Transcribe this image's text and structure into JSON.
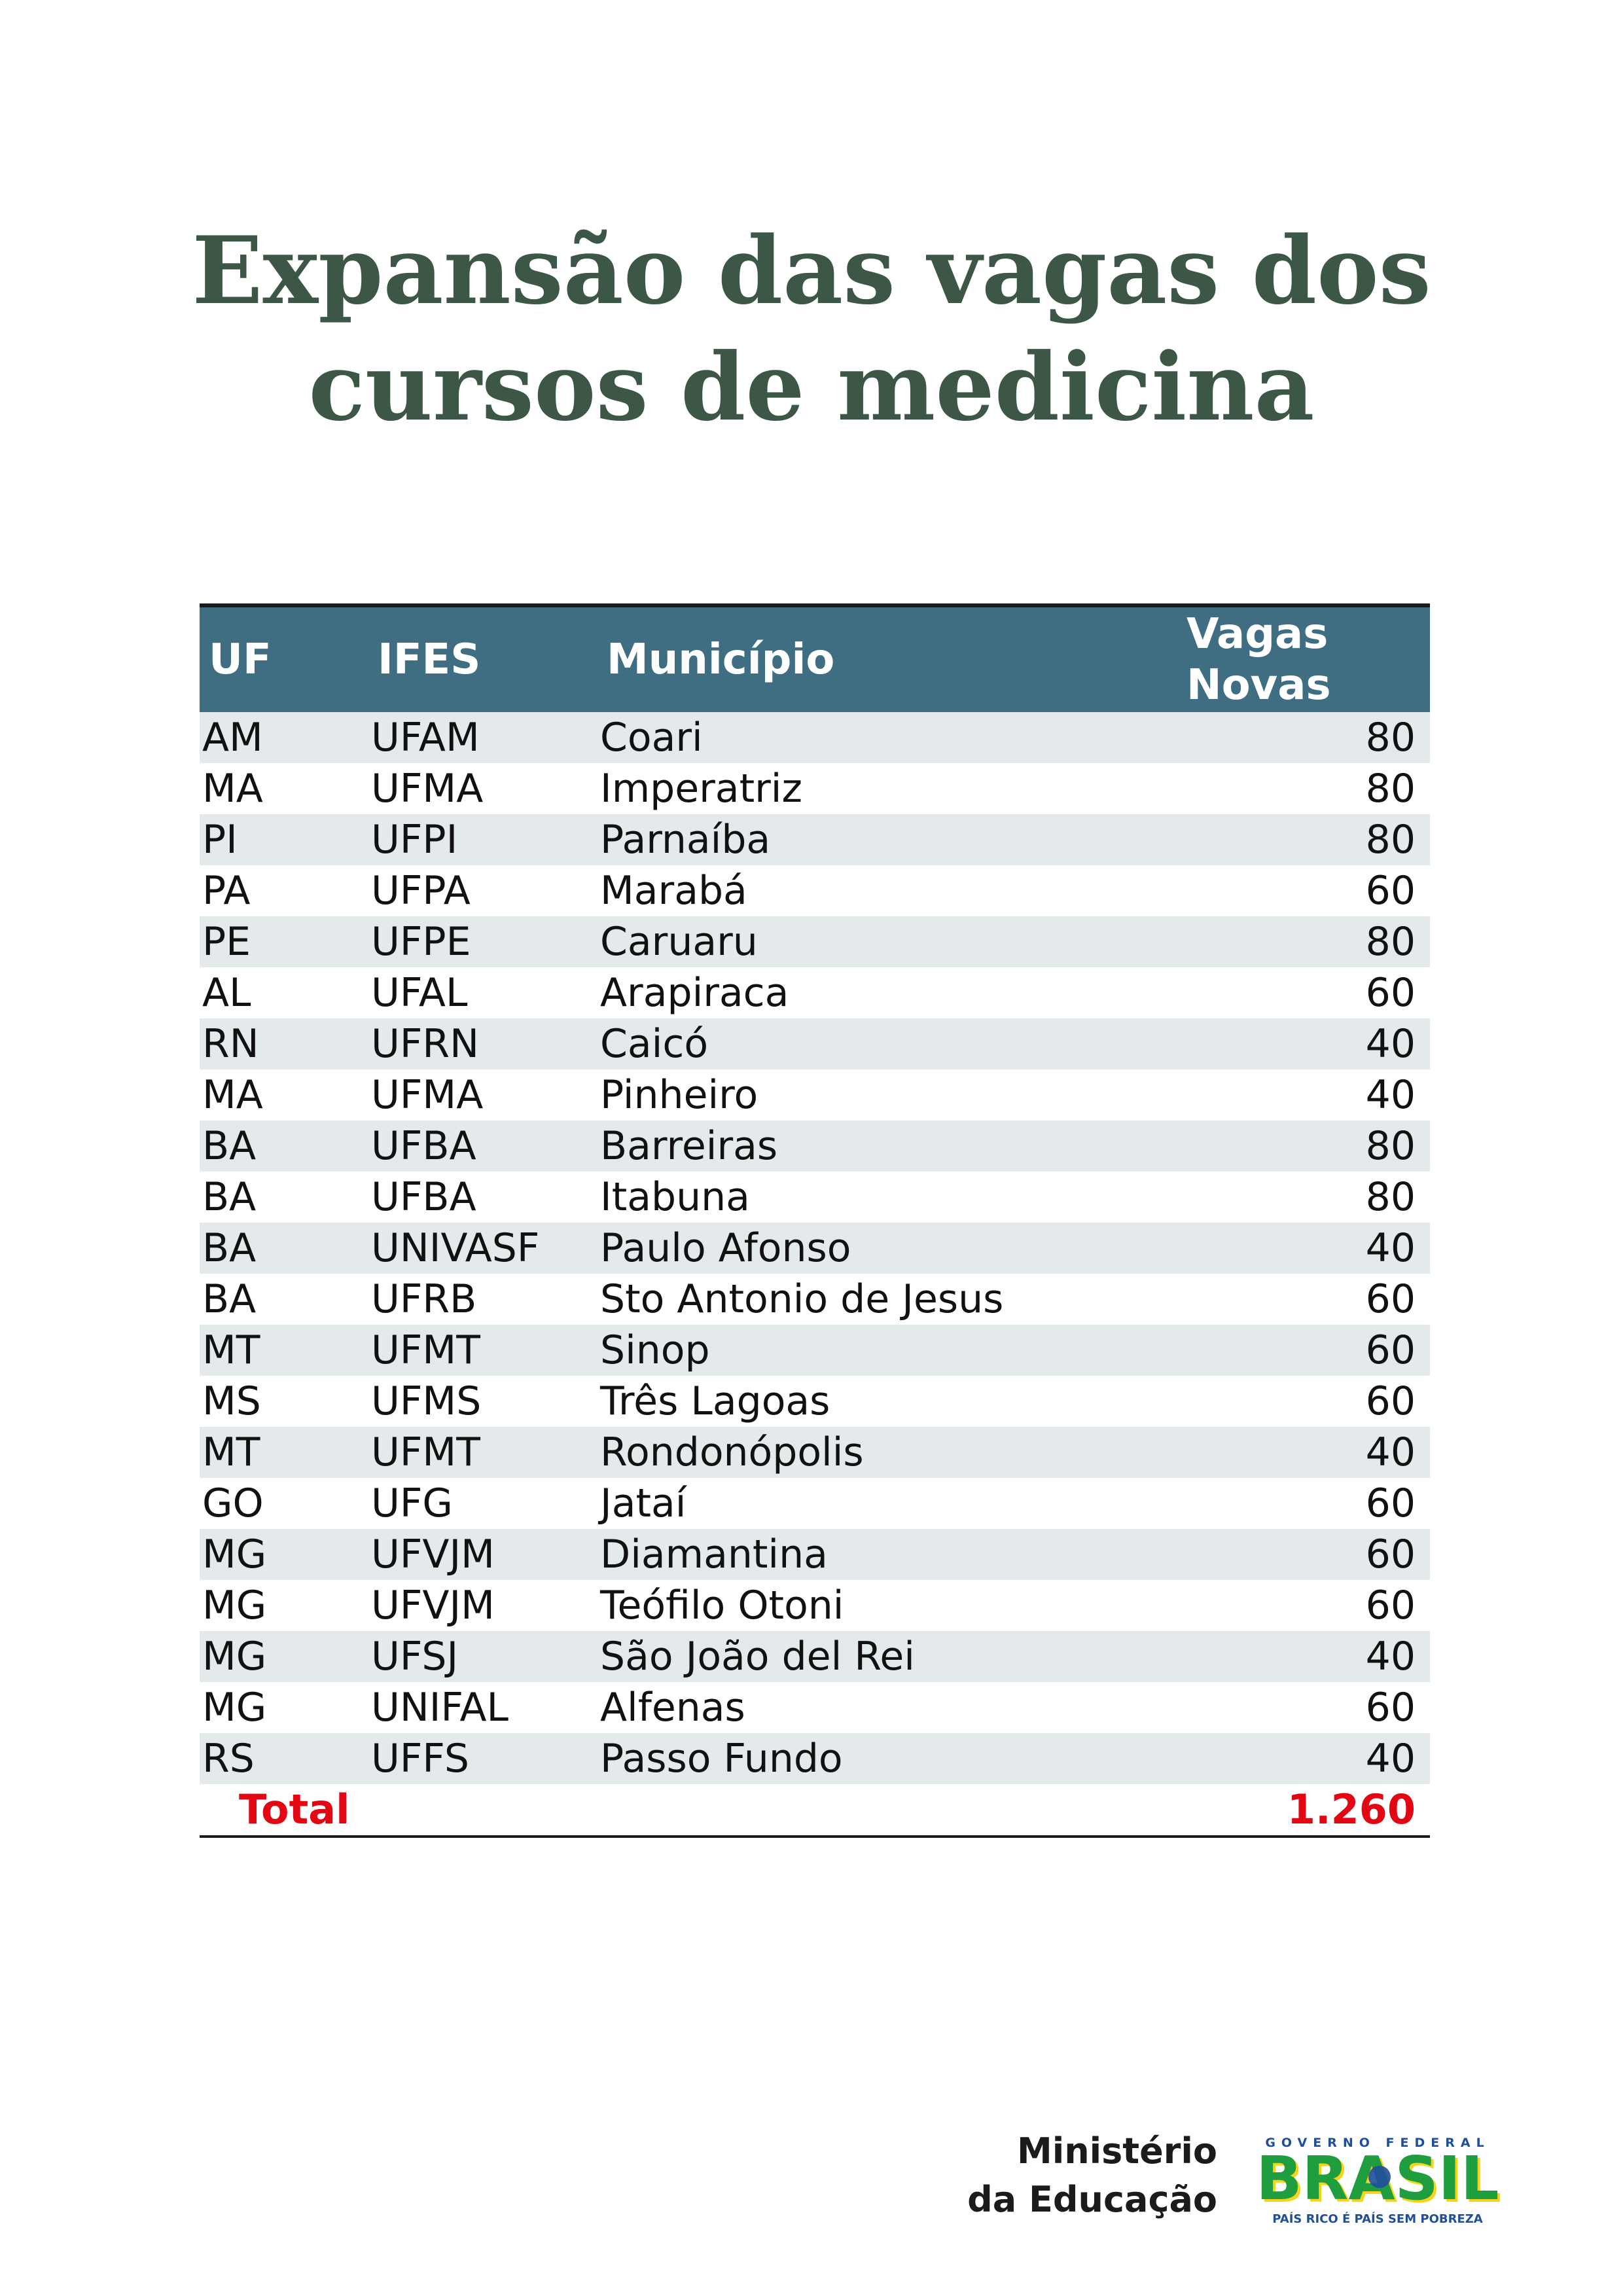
{
  "title": {
    "line1": "Expansão das vagas dos",
    "line2": "cursos de medicina"
  },
  "table": {
    "headers": {
      "uf": "UF",
      "ifes": "IFES",
      "municipio": "Município",
      "vagas_line1": "Vagas",
      "vagas_line2": "Novas"
    },
    "rows": [
      {
        "uf": "AM",
        "ifes": "UFAM",
        "municipio": "Coari",
        "vagas": "80"
      },
      {
        "uf": "MA",
        "ifes": "UFMA",
        "municipio": "Imperatriz",
        "vagas": "80"
      },
      {
        "uf": "PI",
        "ifes": "UFPI",
        "municipio": "Parnaíba",
        "vagas": "80"
      },
      {
        "uf": "PA",
        "ifes": "UFPA",
        "municipio": "Marabá",
        "vagas": "60"
      },
      {
        "uf": "PE",
        "ifes": "UFPE",
        "municipio": "Caruaru",
        "vagas": "80"
      },
      {
        "uf": "AL",
        "ifes": "UFAL",
        "municipio": "Arapiraca",
        "vagas": "60"
      },
      {
        "uf": "RN",
        "ifes": "UFRN",
        "municipio": "Caicó",
        "vagas": "40"
      },
      {
        "uf": "MA",
        "ifes": "UFMA",
        "municipio": "Pinheiro",
        "vagas": "40"
      },
      {
        "uf": "BA",
        "ifes": "UFBA",
        "municipio": "Barreiras",
        "vagas": "80"
      },
      {
        "uf": "BA",
        "ifes": "UFBA",
        "municipio": "Itabuna",
        "vagas": "80"
      },
      {
        "uf": "BA",
        "ifes": "UNIVASF",
        "municipio": "Paulo Afonso",
        "vagas": "40"
      },
      {
        "uf": "BA",
        "ifes": "UFRB",
        "municipio": "Sto Antonio de Jesus",
        "vagas": "60"
      },
      {
        "uf": "MT",
        "ifes": "UFMT",
        "municipio": "Sinop",
        "vagas": "60"
      },
      {
        "uf": "MS",
        "ifes": "UFMS",
        "municipio": "Três Lagoas",
        "vagas": "60"
      },
      {
        "uf": "MT",
        "ifes": "UFMT",
        "municipio": "Rondonópolis",
        "vagas": "40"
      },
      {
        "uf": "GO",
        "ifes": "UFG",
        "municipio": "Jataí",
        "vagas": "60"
      },
      {
        "uf": "MG",
        "ifes": "UFVJM",
        "municipio": "Diamantina",
        "vagas": "60"
      },
      {
        "uf": "MG",
        "ifes": "UFVJM",
        "municipio": "Teófilo Otoni",
        "vagas": "60"
      },
      {
        "uf": "MG",
        "ifes": "UFSJ",
        "municipio": "São João del Rei",
        "vagas": "40"
      },
      {
        "uf": "MG",
        "ifes": "UNIFAL",
        "municipio": "Alfenas",
        "vagas": "60"
      },
      {
        "uf": "RS",
        "ifes": "UFFS",
        "municipio": "Passo Fundo",
        "vagas": "40"
      }
    ],
    "total": {
      "label": "Total",
      "value": "1.260"
    }
  },
  "footer": {
    "ministerio_line1": "Ministério",
    "ministerio_line2": "da Educação",
    "logo_top": "GOVERNO FEDERAL",
    "logo_main": "BRASIL",
    "logo_bottom": "PAÍS RICO É PAÍS SEM POBREZA",
    "colors": {
      "green": "#1e9e3e",
      "yellow": "#f7d417",
      "blue": "#1f4e9c"
    }
  },
  "colors": {
    "title": "#3d5747",
    "header_bg": "#3f6e83",
    "row_alt_bg": "#e4eaeb",
    "total": "#e30613"
  }
}
